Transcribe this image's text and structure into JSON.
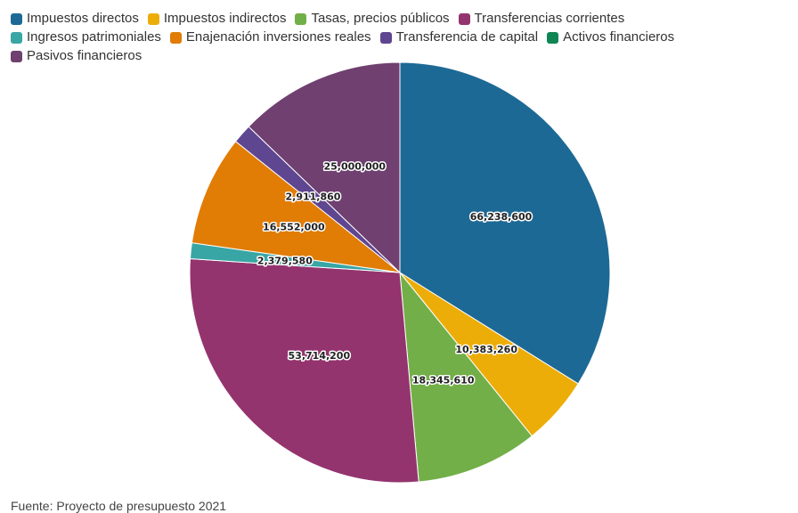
{
  "chart_data": {
    "type": "pie",
    "series": [
      {
        "name": "Impuestos directos",
        "value": 66238600,
        "label": "66,238,600",
        "color": "#1d6996"
      },
      {
        "name": "Impuestos indirectos",
        "value": 10383260,
        "label": "10,383,260",
        "color": "#edad08"
      },
      {
        "name": "Tasas, precios públicos",
        "value": 18345610,
        "label": "18,345,610",
        "color": "#73af48"
      },
      {
        "name": "Transferencias corrientes",
        "value": 53714200,
        "label": "53,714,200",
        "color": "#94346e"
      },
      {
        "name": "Ingresos patrimoniales",
        "value": 2379580,
        "label": "2,379,580",
        "color": "#38a6a5"
      },
      {
        "name": "Enajenación inversiones reales",
        "value": 16552000,
        "label": "16,552,000",
        "color": "#e17c05"
      },
      {
        "name": "Transferencia de capital",
        "value": 2911860,
        "label": "2,911,860",
        "color": "#5f4690"
      },
      {
        "name": "Activos financieros",
        "value": 0,
        "label": "",
        "color": "#0f8554"
      },
      {
        "name": "Pasivos financieros",
        "value": 25000000,
        "label": "25,000,000",
        "color": "#6f4070"
      }
    ],
    "legend_position": "top-left",
    "start": "12 o'clock, clockwise"
  },
  "source": "Fuente: Proyecto de presupuesto 2021"
}
